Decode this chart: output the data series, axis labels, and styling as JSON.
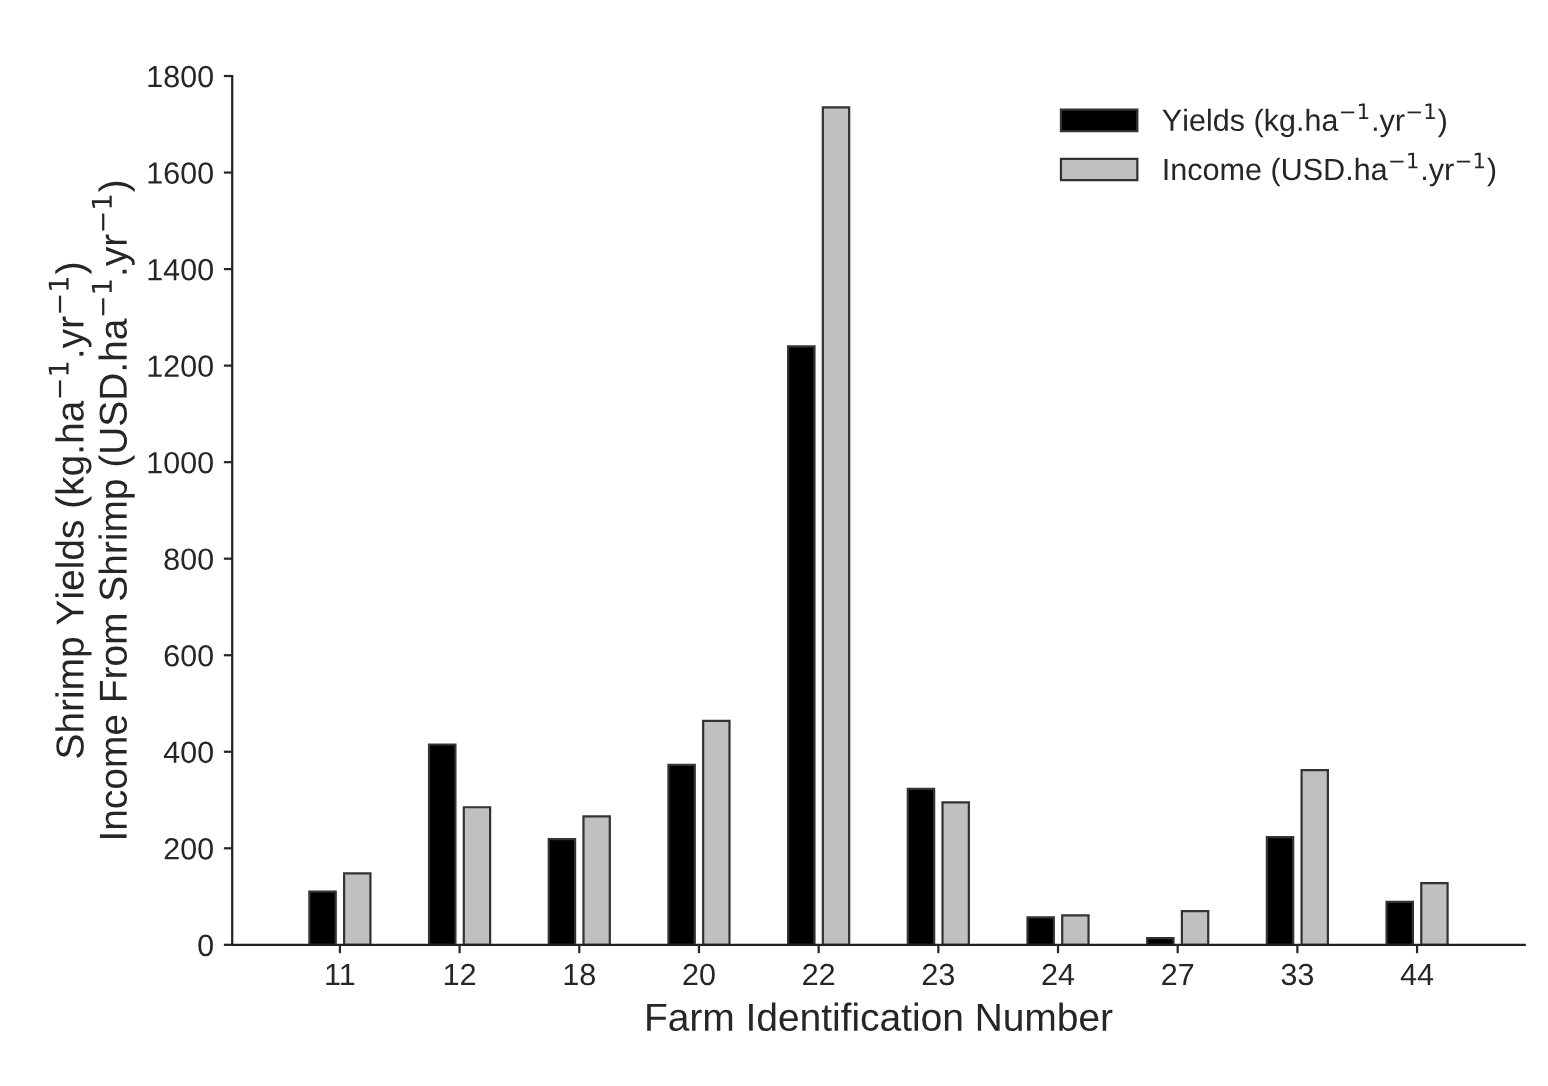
{
  "chart_data": {
    "type": "bar",
    "xlabel": "Farm Identification Number",
    "ylabel": "Shrimp Yields (kg.ha$^{−1}$.yr$^{−1}$)\nIncome From Shrimp (USD.ha$^{−1}$.yr$^{−1}$)",
    "categories": [
      "11",
      "12",
      "18",
      "20",
      "22",
      "23",
      "24",
      "27",
      "33",
      "44"
    ],
    "series": [
      {
        "name": "Yields (kg.ha$^{−1}$.yr$^{−1}$)",
        "color": "#000000",
        "values": [
          110,
          415,
          219,
          373,
          1240,
          323,
          57,
          14,
          223,
          89
        ]
      },
      {
        "name": "Income (USD.ha$^{−1}$.yr$^{−1}$)",
        "color": "#c0c0c0",
        "values": [
          148,
          285,
          266,
          464,
          1735,
          295,
          61,
          70,
          362,
          128
        ]
      }
    ],
    "ylim": [
      0,
      1800
    ],
    "yticks": [
      0,
      200,
      400,
      600,
      800,
      1000,
      1200,
      1400,
      1600,
      1800
    ],
    "grid": false,
    "legend": "top right"
  }
}
